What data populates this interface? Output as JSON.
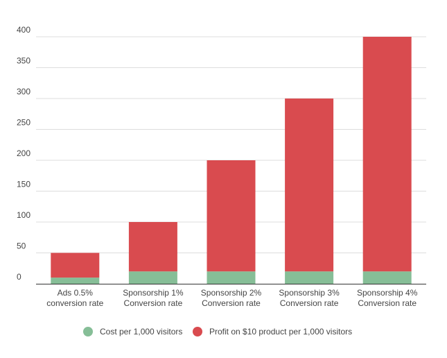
{
  "chart_data": {
    "type": "bar",
    "stacked": true,
    "categories": [
      [
        "Ads 0.5%",
        "conversion rate"
      ],
      [
        "Sponsorship 1%",
        "Conversion rate"
      ],
      [
        "Sponsorship 2%",
        "Conversion rate"
      ],
      [
        "Sponsorship 3%",
        "Conversion rate"
      ],
      [
        "Sponsorship 4%",
        "Conversion rate"
      ]
    ],
    "series": [
      {
        "name": "Cost per 1,000 visitors",
        "color": "#86BE97",
        "values": [
          10,
          20,
          20,
          20,
          20
        ]
      },
      {
        "name": "Profit on $10 product per 1,000 visitors",
        "color": "#D94B4F",
        "values": [
          40,
          80,
          180,
          280,
          380
        ]
      }
    ],
    "ylim": [
      0,
      400
    ],
    "yticks": [
      0,
      50,
      100,
      150,
      200,
      250,
      300,
      350,
      400
    ],
    "grid": true,
    "legend": "bottom"
  }
}
